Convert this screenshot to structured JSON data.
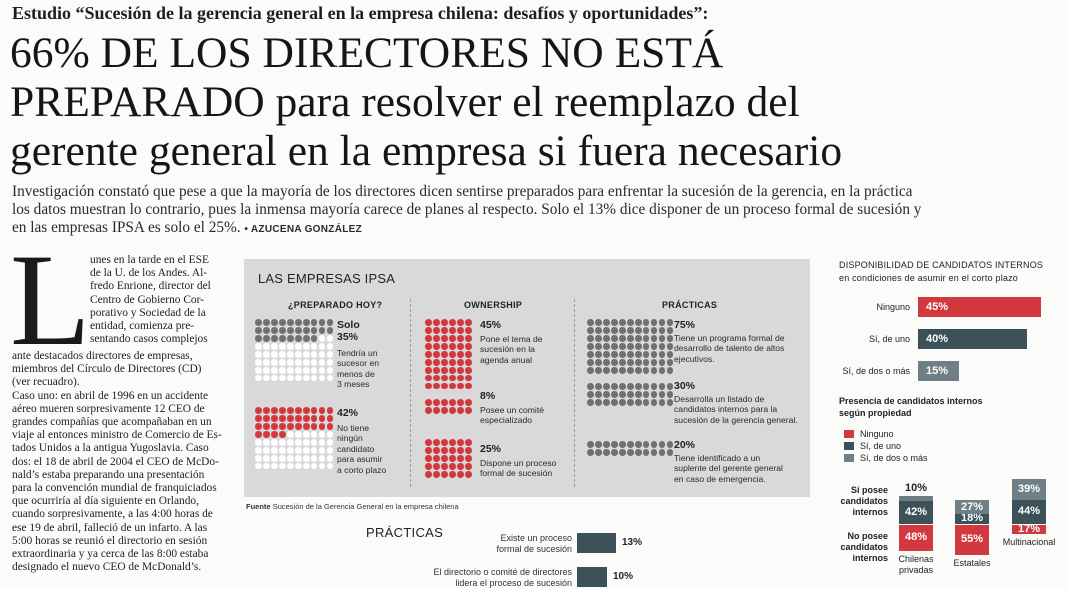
{
  "kicker": "Estudio “Sucesión de la gerencia general en la empresa chilena: desafíos y oportunidades”:",
  "headline": {
    "line1": "66% DE LOS DIRECTORES NO ESTÁ",
    "line2a": "PREPARADO",
    "line2b": " para resolver el reemplazo del",
    "line3": "gerente general en la empresa si fuera necesario"
  },
  "deck": {
    "line1": "Investigación constató que pese a que la mayoría de los directores dicen sentirse preparados para enfrentar la sucesión de la gerencia, en la práctica",
    "line2": "los datos muestran lo contrario, pues la inmensa mayoría carece de planes al respecto. Solo el 13% dice disponer de un proceso formal de sucesión y",
    "line3": "en las empresas IPSA es solo el 25%.",
    "byline": "• AZUCENA GONZÁLEZ"
  },
  "body": {
    "dropcap": "L",
    "short_lines": [
      "unes en la tarde en el ESE",
      "de la U. de los Andes. Al-",
      "fredo Enrione, director del",
      "Centro de Gobierno Cor-",
      "porativo y Sociedad de la",
      "entidad, comienza pre-",
      "sentando casos complejos"
    ],
    "lines": [
      "ante destacados directores de empresas,",
      "miembros del Círculo de Directores (CD)",
      "(ver recuadro).",
      "    Caso uno: en abril de 1996 en un accidente",
      "aéreo mueren sorpresivamente 12 CEO de",
      "grandes compañías que acompañaban en un",
      "viaje al entonces ministro de Comercio de Es-",
      "tados Unidos a la antigua Yugoslavia. Caso",
      "dos: el 18 de abril de 2004 el CEO de McDo-",
      "nald’s estaba preparando una presentación",
      "para la convención mundial de franquiciados",
      "que ocurriría al día siguiente en Orlando,",
      "cuando sorpresivamente, a las 4:00 horas de",
      "ese 19 de abril, falleció de un infarto. A las",
      "5:00 horas se reunió el directorio en sesión",
      "extraordinaria y ya cerca de las 8:00 estaba",
      "designado el nuevo CEO de McDonald’s."
    ]
  },
  "ipsa": {
    "title": "LAS EMPRESAS IPSA",
    "sections": {
      "preparado": "¿PREPARADO HOY?",
      "ownership": "OWNERSHIP",
      "practicas": "PRÁCTICAS"
    },
    "preparado_items": [
      {
        "pct_prefix": "Solo",
        "pct": "35%",
        "label": [
          "Tendría un",
          "sucesor en",
          "menos de",
          "3 meses"
        ]
      },
      {
        "pct": "42%",
        "label": [
          "No tiene",
          "ningún",
          "candidato",
          "para asumir",
          "a corto plazo"
        ]
      }
    ],
    "ownership_items": [
      {
        "pct": "45%",
        "label": [
          "Pone el tema de",
          "sucesión en la",
          "agenda anual"
        ]
      },
      {
        "pct": "8%",
        "label": [
          "Posee un comité",
          "especializado"
        ]
      },
      {
        "pct": "25%",
        "label": [
          "Dispone un proceso",
          "formal de sucesión"
        ]
      }
    ],
    "practicas_items": [
      {
        "pct": "75%",
        "label": [
          "Tiene un programa formal de",
          "desarrollo de talento de altos",
          "ejecutivos."
        ]
      },
      {
        "pct": "30%",
        "label": [
          "Desarrolla un listado de",
          "candidatos internos para la",
          "sucesión de la gerencia general."
        ]
      },
      {
        "pct": "20%",
        "label": [
          "Tiene identificado a un",
          "suplente del gerente general",
          "en caso de emergencia."
        ]
      }
    ],
    "source_label": "Fuente",
    "source_text": "Sucesión de la Gerencia General en la empresa chilena"
  },
  "practicas_bottom": {
    "title": "PRÁCTICAS",
    "items": [
      {
        "label": [
          "Existe un proceso",
          "formal de sucesión"
        ],
        "value": 13,
        "value_label": "13%"
      },
      {
        "label": [
          "El directorio o comité de directores",
          "lidera el proceso de sucesión"
        ],
        "value": 10,
        "value_label": "10%"
      }
    ]
  },
  "disponibilidad": {
    "title": "DISPONIBILIDAD DE CANDIDATOS INTERNOS",
    "subtitle": "en condiciones de asumir en el corto plazo",
    "bars": [
      {
        "label": "Ninguno",
        "value": 45,
        "value_label": "45%",
        "color": "#d2393e"
      },
      {
        "label": "Sí, de uno",
        "value": 40,
        "value_label": "40%",
        "color": "#3d5258"
      },
      {
        "label": "Sí, de dos o más",
        "value": 15,
        "value_label": "15%",
        "color": "#6e8085"
      }
    ]
  },
  "presencia": {
    "title_line1": "Presencia de candidatos internos",
    "title_line2": "según propiedad",
    "legend": [
      {
        "label": "Ninguno",
        "color": "#d2393e"
      },
      {
        "label": "Sí, de uno",
        "color": "#3d5258"
      },
      {
        "label": "Sí, de dos o más",
        "color": "#6e8085"
      }
    ],
    "row_pos": [
      "Sí posee",
      "candidatos",
      "internos"
    ],
    "row_neg": [
      "No posee",
      "candidatos",
      "internos"
    ],
    "groups": [
      {
        "name": [
          "Chilenas",
          "privadas"
        ],
        "dos_o_mas": "10%",
        "uno": "42%",
        "ninguno": "48%",
        "v_dos": 10,
        "v_uno": 42,
        "v_ninguno": 48
      },
      {
        "name": [
          "Estatales"
        ],
        "dos_o_mas": "27%",
        "uno": "18%",
        "ninguno": "55%",
        "v_dos": 27,
        "v_uno": 18,
        "v_ninguno": 55
      },
      {
        "name": [
          "Multinacional"
        ],
        "dos_o_mas": "39%",
        "uno": "44%",
        "ninguno": "17%",
        "v_dos": 39,
        "v_uno": 44,
        "v_ninguno": 17
      }
    ]
  }
}
